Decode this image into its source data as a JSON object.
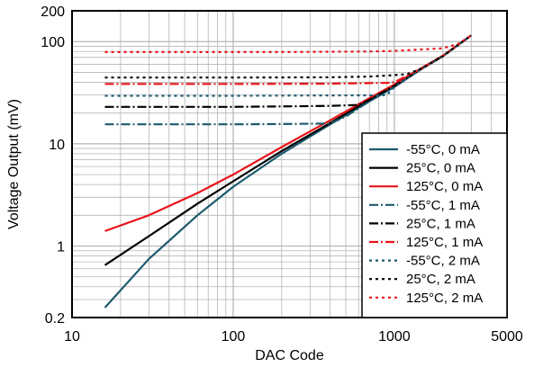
{
  "chart_data": {
    "type": "line",
    "xlabel": "DAC Code",
    "ylabel": "Voltage Output (mV)",
    "x_scale": "log",
    "y_scale": "log",
    "xlim": [
      10,
      5000
    ],
    "ylim": [
      0.2,
      200
    ],
    "x_ticks": [
      {
        "value": 10,
        "label": "10"
      },
      {
        "value": 100,
        "label": "100"
      },
      {
        "value": 1000,
        "label": "1000"
      },
      {
        "value": 5000,
        "label": "5000"
      }
    ],
    "y_ticks": [
      {
        "value": 0.2,
        "label": "0.2"
      },
      {
        "value": 1,
        "label": "1"
      },
      {
        "value": 10,
        "label": "10"
      },
      {
        "value": 100,
        "label": "100"
      },
      {
        "value": 200,
        "label": "200"
      }
    ],
    "grid": true,
    "legend_position": "bottom-right",
    "series": [
      {
        "name": "-55°C, 0 mA",
        "color": "#1c5a6e",
        "dash": "solid",
        "x": [
          16,
          30,
          60,
          100,
          200,
          400,
          700,
          1000,
          1500,
          2000,
          3000
        ],
        "y": [
          0.25,
          0.75,
          2.0,
          3.8,
          8.0,
          15.5,
          26,
          36,
          55,
          72,
          115
        ]
      },
      {
        "name": "25°C, 0 mA",
        "color": "#000000",
        "dash": "solid",
        "x": [
          16,
          30,
          60,
          100,
          200,
          400,
          700,
          1000,
          1500,
          2000,
          3000
        ],
        "y": [
          0.65,
          1.25,
          2.6,
          4.3,
          8.5,
          16,
          27,
          37,
          55,
          72,
          115
        ]
      },
      {
        "name": "125°C, 0 mA",
        "color": "#e8141a",
        "dash": "solid",
        "x": [
          16,
          30,
          60,
          100,
          200,
          400,
          700,
          1000,
          1500,
          2000,
          3000
        ],
        "y": [
          1.4,
          2.0,
          3.3,
          5.0,
          9.3,
          17,
          28,
          38,
          56,
          73,
          115
        ]
      },
      {
        "name": "-55°C, 1 mA",
        "color": "#1c5a6e",
        "dash": "dashdot",
        "x": [
          16,
          100,
          200,
          400,
          500,
          700,
          1000,
          1500,
          2000,
          3000
        ],
        "y": [
          15.5,
          15.5,
          15.6,
          15.8,
          18.5,
          26,
          36,
          55,
          72,
          115
        ]
      },
      {
        "name": "25°C, 1 mA",
        "color": "#000000",
        "dash": "dashdot",
        "x": [
          16,
          100,
          200,
          400,
          600,
          700,
          1000,
          1500,
          2000,
          3000
        ],
        "y": [
          23,
          23,
          23.2,
          23.5,
          24,
          27,
          37,
          55,
          72,
          115
        ]
      },
      {
        "name": "125°C, 1 mA",
        "color": "#e8141a",
        "dash": "dashdot",
        "x": [
          16,
          100,
          200,
          400,
          700,
          900,
          1000,
          1500,
          2000,
          3000
        ],
        "y": [
          38.5,
          38.5,
          38.6,
          38.8,
          39.2,
          39.5,
          40,
          55,
          72,
          115
        ]
      },
      {
        "name": "-55°C, 2 mA",
        "color": "#1c5a6e",
        "dash": "dotted",
        "x": [
          16,
          100,
          200,
          400,
          700,
          900,
          1000,
          1500,
          2000,
          3000
        ],
        "y": [
          29.5,
          29.5,
          29.6,
          29.7,
          29.8,
          30,
          36,
          55,
          72,
          115
        ]
      },
      {
        "name": "25°C, 2 mA",
        "color": "#000000",
        "dash": "dotted",
        "x": [
          16,
          100,
          200,
          400,
          700,
          1000,
          1200,
          1500,
          2000,
          3000
        ],
        "y": [
          44.5,
          44.5,
          44.6,
          44.8,
          45.5,
          47,
          48,
          55,
          72,
          115
        ]
      },
      {
        "name": "125°C, 2 mA",
        "color": "#e8141a",
        "dash": "dotted",
        "x": [
          16,
          100,
          200,
          400,
          700,
          1000,
          2000,
          2500,
          3000
        ],
        "y": [
          79,
          79,
          79,
          79.5,
          80,
          81,
          86,
          95,
          115
        ]
      }
    ]
  }
}
